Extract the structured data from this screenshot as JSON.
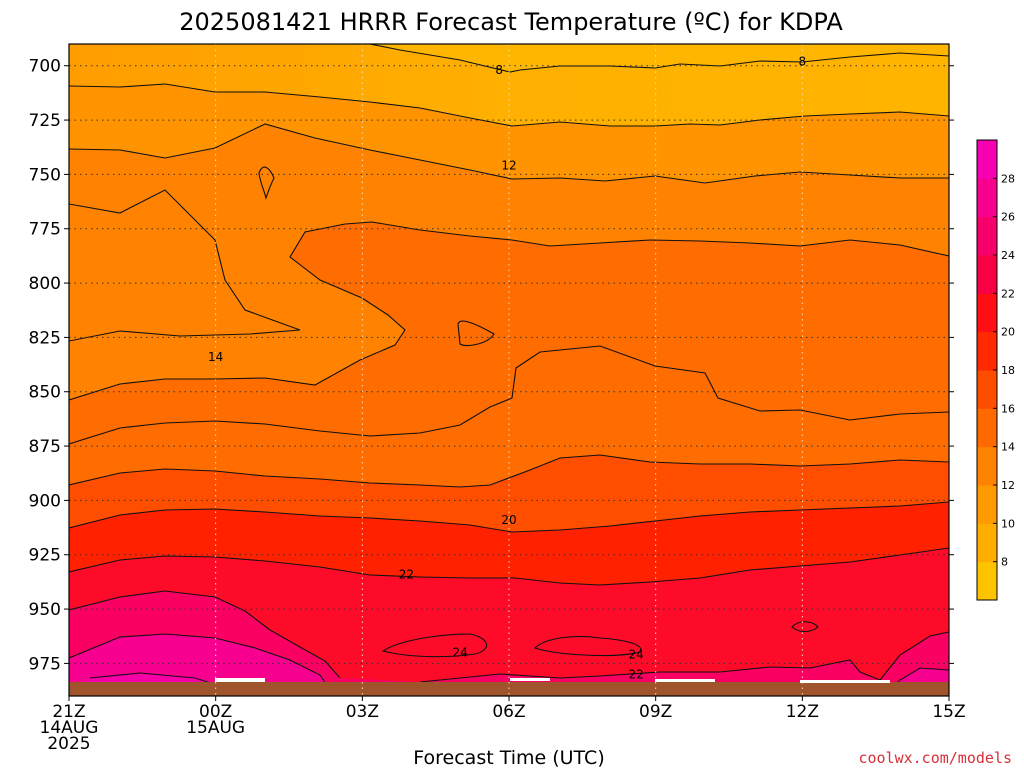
{
  "chart_data": {
    "type": "heatmap",
    "title": "2025081421 HRRR Forecast Temperature (ºC) for KDPA",
    "xlabel": "Forecast Time (UTC)",
    "ylabel": "",
    "credit": "coolwx.com/models",
    "x_ticks": [
      {
        "hour": 0,
        "lines": [
          "21Z",
          "14AUG",
          "2025"
        ]
      },
      {
        "hour": 3,
        "lines": [
          "00Z",
          "15AUG"
        ]
      },
      {
        "hour": 6,
        "lines": [
          "03Z"
        ]
      },
      {
        "hour": 9,
        "lines": [
          "06Z"
        ]
      },
      {
        "hour": 12,
        "lines": [
          "09Z"
        ]
      },
      {
        "hour": 15,
        "lines": [
          "12Z"
        ]
      },
      {
        "hour": 18,
        "lines": [
          "15Z"
        ]
      }
    ],
    "xlim": [
      0,
      18
    ],
    "y_ticks": [
      700,
      725,
      750,
      775,
      800,
      825,
      850,
      875,
      900,
      925,
      950,
      975
    ],
    "ylim": [
      690,
      990
    ],
    "grid": true,
    "ground_level_hpa": 982,
    "colorbar": {
      "ticks": [
        8,
        10,
        12,
        14,
        16,
        18,
        20,
        22,
        24,
        26,
        28
      ],
      "min": 6,
      "max": 30,
      "colors": [
        "#ffc400",
        "#ffad00",
        "#ff9a00",
        "#ff8200",
        "#ff6a00",
        "#ff4d00",
        "#ff2a00",
        "#ff0f14",
        "#f70044",
        "#f7006b",
        "#f70090",
        "#f700b2"
      ]
    },
    "contour_labels": [
      {
        "text": "8",
        "hour": 8.8,
        "hpa": 702
      },
      {
        "text": "8",
        "hour": 15,
        "hpa": 698
      },
      {
        "text": "12",
        "hour": 9,
        "hpa": 746
      },
      {
        "text": "14",
        "hour": 3,
        "hpa": 834
      },
      {
        "text": "20",
        "hour": 9,
        "hpa": 909
      },
      {
        "text": "22",
        "hour": 6.9,
        "hpa": 934
      },
      {
        "text": "24",
        "hour": 8,
        "hpa": 970
      },
      {
        "text": "24",
        "hour": 11.6,
        "hpa": 971
      },
      {
        "text": "22",
        "hour": 11.6,
        "hpa": 980
      }
    ],
    "temperature_profile_samples": [
      {
        "hour": 0,
        "levels_hpa": [
          700,
          750,
          800,
          850,
          900,
          950,
          975
        ],
        "temps_c": [
          10,
          12,
          13.5,
          14.5,
          19.5,
          23,
          25.5
        ]
      },
      {
        "hour": 3,
        "levels_hpa": [
          700,
          750,
          800,
          850,
          900,
          950,
          975
        ],
        "temps_c": [
          10,
          12,
          13.5,
          15,
          20,
          23.5,
          26
        ]
      },
      {
        "hour": 9,
        "levels_hpa": [
          700,
          750,
          800,
          850,
          900,
          950,
          975
        ],
        "temps_c": [
          8.5,
          12.5,
          15,
          16.5,
          19.5,
          22.5,
          24
        ]
      },
      {
        "hour": 15,
        "levels_hpa": [
          700,
          750,
          800,
          850,
          900,
          950,
          975
        ],
        "temps_c": [
          8.5,
          12.5,
          15.5,
          16,
          19.5,
          22,
          21.5
        ]
      },
      {
        "hour": 18,
        "levels_hpa": [
          700,
          750,
          800,
          850,
          900,
          950,
          975
        ],
        "temps_c": [
          9,
          12.5,
          15,
          16,
          19.5,
          22.5,
          24.5
        ]
      }
    ]
  }
}
